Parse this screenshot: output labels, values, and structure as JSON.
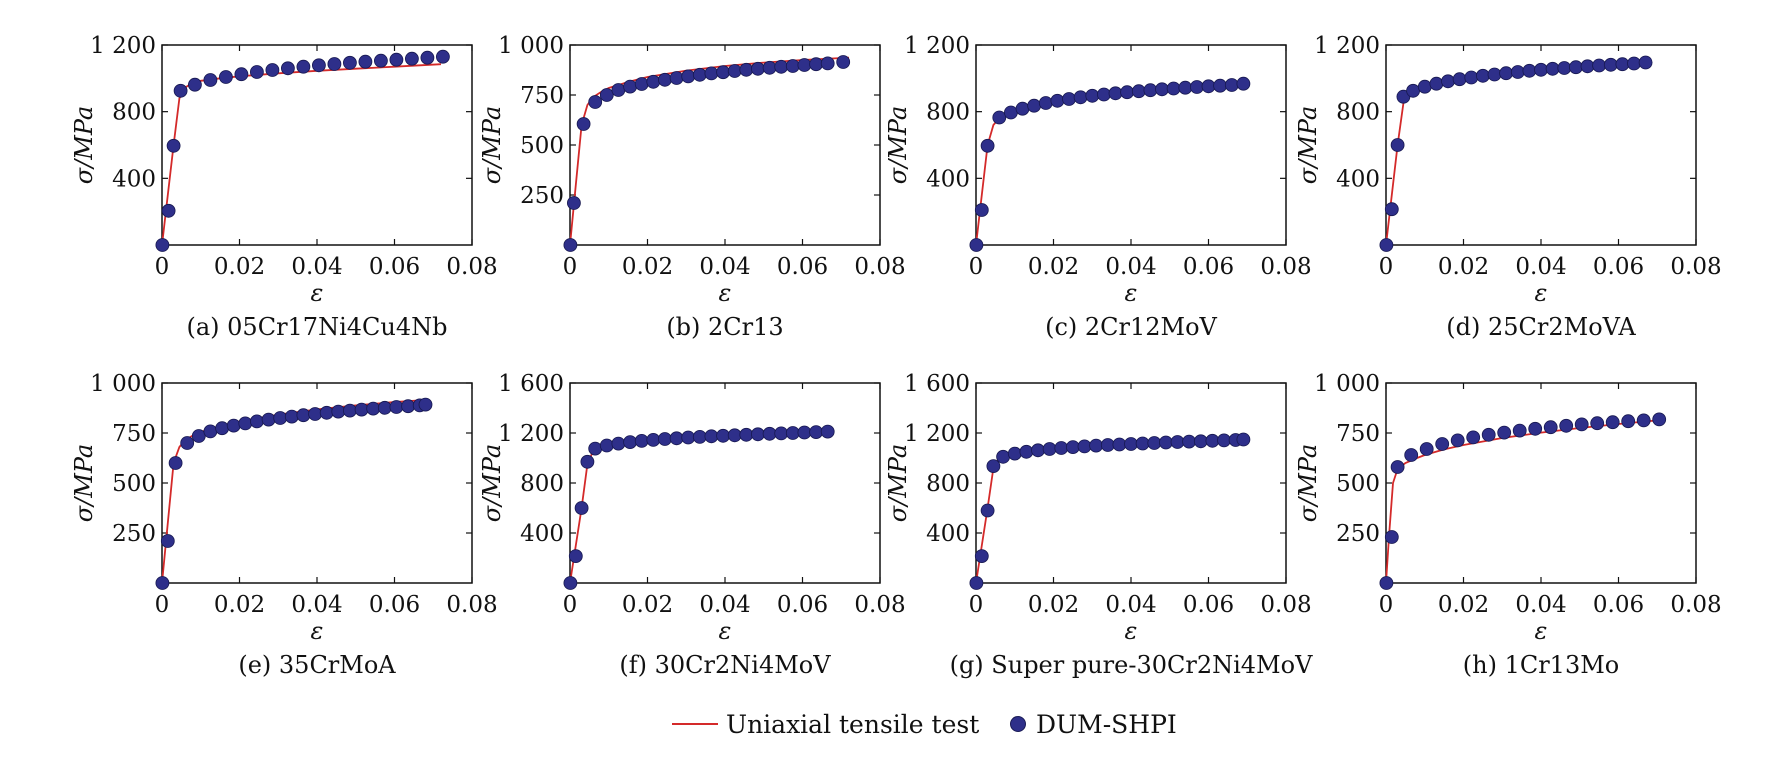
{
  "legend": {
    "line_label": "Uniaxial tensile test",
    "marker_label": "DUM-SHPI",
    "line_color": "#d42a2a",
    "marker_color": "#2e2f8a"
  },
  "chart_data": [
    {
      "type": "line",
      "caption": "(a) 05Cr17Ni4Cu4Nb",
      "xlabel": "ε",
      "ylabel": "σ/MPa",
      "xlim": [
        0,
        0.08
      ],
      "ylim": [
        0,
        1200
      ],
      "xticks": [
        0,
        0.02,
        0.04,
        0.06,
        0.08
      ],
      "xtick_labels": [
        "0",
        "0.02",
        "0.04",
        "0.06",
        "0.08"
      ],
      "yticks": [
        400,
        800,
        1200
      ],
      "ytick_labels": [
        "400",
        "800",
        "1 200"
      ],
      "series": [
        {
          "name": "Uniaxial tensile test",
          "x": [
            0,
            0.0015,
            0.003,
            0.0045,
            0.006,
            0.008,
            0.01,
            0.015,
            0.02,
            0.03,
            0.04,
            0.05,
            0.06,
            0.072
          ],
          "y": [
            0,
            300,
            600,
            880,
            945,
            975,
            985,
            1000,
            1012,
            1030,
            1045,
            1058,
            1070,
            1085
          ]
        },
        {
          "name": "DUM-SHPI",
          "x": [
            0.0001,
            0.0017,
            0.003,
            0.0048,
            0.0085,
            0.0125,
            0.0165,
            0.0205,
            0.0245,
            0.0285,
            0.0325,
            0.0365,
            0.0405,
            0.0445,
            0.0485,
            0.0525,
            0.0565,
            0.0605,
            0.0645,
            0.0685,
            0.0725
          ],
          "y": [
            0,
            205,
            595,
            925,
            962,
            990,
            1008,
            1025,
            1038,
            1050,
            1060,
            1070,
            1078,
            1086,
            1093,
            1100,
            1106,
            1112,
            1118,
            1124,
            1130
          ]
        }
      ]
    },
    {
      "type": "line",
      "caption": "(b) 2Cr13",
      "xlabel": "ε",
      "ylabel": "σ/MPa",
      "xlim": [
        0,
        0.08
      ],
      "ylim": [
        0,
        1000
      ],
      "xticks": [
        0,
        0.02,
        0.04,
        0.06,
        0.08
      ],
      "xtick_labels": [
        "0",
        "0.02",
        "0.04",
        "0.06",
        "0.08"
      ],
      "yticks": [
        250,
        500,
        750,
        1000
      ],
      "ytick_labels": [
        "250",
        "500",
        "750",
        "1 000"
      ],
      "series": [
        {
          "name": "Uniaxial tensile test",
          "x": [
            0,
            0.0015,
            0.003,
            0.0045,
            0.006,
            0.008,
            0.01,
            0.015,
            0.02,
            0.03,
            0.04,
            0.05,
            0.06,
            0.072
          ],
          "y": [
            0,
            300,
            600,
            700,
            740,
            765,
            785,
            815,
            840,
            872,
            895,
            912,
            925,
            937
          ]
        },
        {
          "name": "DUM-SHPI",
          "x": [
            0.0001,
            0.001,
            0.0035,
            0.0065,
            0.0095,
            0.0125,
            0.0155,
            0.0185,
            0.0215,
            0.0245,
            0.0275,
            0.0305,
            0.0335,
            0.0365,
            0.0395,
            0.0425,
            0.0455,
            0.0485,
            0.0515,
            0.0545,
            0.0575,
            0.0605,
            0.0635,
            0.0665,
            0.0705
          ],
          "y": [
            0,
            210,
            605,
            715,
            750,
            775,
            792,
            805,
            816,
            826,
            835,
            843,
            851,
            858,
            864,
            870,
            876,
            881,
            886,
            891,
            895,
            900,
            904,
            908,
            915
          ]
        }
      ]
    },
    {
      "type": "line",
      "caption": "(c) 2Cr12MoV",
      "xlabel": "ε",
      "ylabel": "σ/MPa",
      "xlim": [
        0,
        0.08
      ],
      "ylim": [
        0,
        1200
      ],
      "xticks": [
        0,
        0.02,
        0.04,
        0.06,
        0.08
      ],
      "xtick_labels": [
        "0",
        "0.02",
        "0.04",
        "0.06",
        "0.08"
      ],
      "yticks": [
        400,
        800,
        1200
      ],
      "ytick_labels": [
        "400",
        "800",
        "1 200"
      ],
      "series": [
        {
          "name": "Uniaxial tensile test",
          "x": [
            0,
            0.0015,
            0.003,
            0.0045,
            0.006,
            0.008,
            0.01,
            0.015,
            0.02,
            0.03,
            0.04,
            0.05,
            0.06,
            0.069
          ],
          "y": [
            0,
            300,
            600,
            720,
            760,
            785,
            805,
            840,
            865,
            900,
            925,
            945,
            960,
            972
          ]
        },
        {
          "name": "DUM-SHPI",
          "x": [
            0.0001,
            0.0015,
            0.003,
            0.006,
            0.009,
            0.012,
            0.015,
            0.018,
            0.021,
            0.024,
            0.027,
            0.03,
            0.033,
            0.036,
            0.039,
            0.042,
            0.045,
            0.048,
            0.051,
            0.054,
            0.057,
            0.06,
            0.063,
            0.066,
            0.069
          ],
          "y": [
            0,
            210,
            595,
            765,
            795,
            818,
            836,
            852,
            865,
            876,
            886,
            895,
            903,
            910,
            917,
            923,
            929,
            934,
            939,
            944,
            948,
            952,
            956,
            960,
            968
          ]
        }
      ]
    },
    {
      "type": "line",
      "caption": "(d) 25Cr2MoVA",
      "xlabel": "ε",
      "ylabel": "σ/MPa",
      "xlim": [
        0,
        0.08
      ],
      "ylim": [
        0,
        1200
      ],
      "xticks": [
        0,
        0.02,
        0.04,
        0.06,
        0.08
      ],
      "xtick_labels": [
        "0",
        "0.02",
        "0.04",
        "0.06",
        "0.08"
      ],
      "yticks": [
        400,
        800,
        1200
      ],
      "ytick_labels": [
        "400",
        "800",
        "1 200"
      ],
      "series": [
        {
          "name": "Uniaxial tensile test",
          "x": [
            0,
            0.0015,
            0.003,
            0.0045,
            0.006,
            0.008,
            0.01,
            0.015,
            0.02,
            0.03,
            0.04,
            0.05,
            0.06,
            0.067
          ],
          "y": [
            0,
            300,
            600,
            850,
            900,
            930,
            950,
            978,
            997,
            1025,
            1045,
            1062,
            1078,
            1088
          ]
        },
        {
          "name": "DUM-SHPI",
          "x": [
            0.0001,
            0.0015,
            0.003,
            0.0045,
            0.007,
            0.01,
            0.013,
            0.016,
            0.019,
            0.022,
            0.025,
            0.028,
            0.031,
            0.034,
            0.037,
            0.04,
            0.043,
            0.046,
            0.049,
            0.052,
            0.055,
            0.058,
            0.061,
            0.064,
            0.067
          ],
          "y": [
            0,
            215,
            600,
            890,
            925,
            950,
            968,
            982,
            995,
            1005,
            1015,
            1023,
            1031,
            1038,
            1045,
            1051,
            1057,
            1062,
            1067,
            1072,
            1077,
            1081,
            1085,
            1089,
            1095
          ]
        }
      ]
    },
    {
      "type": "line",
      "caption": "(e) 35CrMoA",
      "xlabel": "ε",
      "ylabel": "σ/MPa",
      "xlim": [
        0,
        0.08
      ],
      "ylim": [
        0,
        1000
      ],
      "xticks": [
        0,
        0.02,
        0.04,
        0.06,
        0.08
      ],
      "xtick_labels": [
        "0",
        "0.02",
        "0.04",
        "0.06",
        "0.08"
      ],
      "yticks": [
        250,
        500,
        750,
        1000
      ],
      "ytick_labels": [
        "250",
        "500",
        "750",
        "1 000"
      ],
      "series": [
        {
          "name": "Uniaxial tensile test",
          "x": [
            0,
            0.0015,
            0.003,
            0.0045,
            0.006,
            0.008,
            0.01,
            0.015,
            0.02,
            0.03,
            0.04,
            0.05,
            0.06,
            0.068
          ],
          "y": [
            0,
            300,
            600,
            680,
            715,
            738,
            755,
            785,
            808,
            842,
            868,
            888,
            905,
            915
          ]
        },
        {
          "name": "DUM-SHPI",
          "x": [
            0.0001,
            0.0015,
            0.0035,
            0.0065,
            0.0095,
            0.0125,
            0.0155,
            0.0185,
            0.0215,
            0.0245,
            0.0275,
            0.0305,
            0.0335,
            0.0365,
            0.0395,
            0.0425,
            0.0455,
            0.0485,
            0.0515,
            0.0545,
            0.0575,
            0.0605,
            0.0635,
            0.0665,
            0.068
          ],
          "y": [
            0,
            210,
            600,
            700,
            735,
            758,
            774,
            787,
            798,
            808,
            817,
            825,
            832,
            839,
            845,
            851,
            857,
            862,
            867,
            872,
            876,
            880,
            884,
            888,
            892
          ]
        }
      ]
    },
    {
      "type": "line",
      "caption": "(f) 30Cr2Ni4MoV",
      "xlabel": "ε",
      "ylabel": "σ/MPa",
      "xlim": [
        0,
        0.08
      ],
      "ylim": [
        0,
        1600
      ],
      "xticks": [
        0,
        0.02,
        0.04,
        0.06,
        0.08
      ],
      "xtick_labels": [
        "0",
        "0.02",
        "0.04",
        "0.06",
        "0.08"
      ],
      "yticks": [
        400,
        800,
        1200,
        1600
      ],
      "ytick_labels": [
        "400",
        "800",
        "1 200",
        "1 600"
      ],
      "series": [
        {
          "name": "Uniaxial tensile test",
          "x": [
            0,
            0.0015,
            0.003,
            0.0045,
            0.006,
            0.008,
            0.01,
            0.015,
            0.02,
            0.03,
            0.04,
            0.05,
            0.06,
            0.067
          ],
          "y": [
            0,
            300,
            600,
            950,
            1060,
            1090,
            1105,
            1130,
            1145,
            1165,
            1182,
            1195,
            1206,
            1213
          ]
        },
        {
          "name": "DUM-SHPI",
          "x": [
            0.0001,
            0.0015,
            0.003,
            0.0045,
            0.0065,
            0.0095,
            0.0125,
            0.0155,
            0.0185,
            0.0215,
            0.0245,
            0.0275,
            0.0305,
            0.0335,
            0.0365,
            0.0395,
            0.0425,
            0.0455,
            0.0485,
            0.0515,
            0.0545,
            0.0575,
            0.0605,
            0.0635,
            0.0665
          ],
          "y": [
            0,
            215,
            600,
            970,
            1075,
            1100,
            1115,
            1127,
            1137,
            1145,
            1152,
            1158,
            1164,
            1169,
            1174,
            1178,
            1182,
            1186,
            1190,
            1194,
            1197,
            1200,
            1204,
            1207,
            1211
          ]
        }
      ]
    },
    {
      "type": "line",
      "caption": "(g) Super pure-30Cr2Ni4MoV",
      "xlabel": "ε",
      "ylabel": "σ/MPa",
      "xlim": [
        0,
        0.08
      ],
      "ylim": [
        0,
        1600
      ],
      "xticks": [
        0,
        0.02,
        0.04,
        0.06,
        0.08
      ],
      "xtick_labels": [
        "0",
        "0.02",
        "0.04",
        "0.06",
        "0.08"
      ],
      "yticks": [
        400,
        800,
        1200,
        1600
      ],
      "ytick_labels": [
        "400",
        "800",
        "1 200",
        "1 600"
      ],
      "series": [
        {
          "name": "Uniaxial tensile test",
          "x": [
            0,
            0.0015,
            0.003,
            0.0045,
            0.006,
            0.008,
            0.01,
            0.015,
            0.02,
            0.03,
            0.04,
            0.05,
            0.06,
            0.069
          ],
          "y": [
            0,
            300,
            600,
            920,
            1000,
            1030,
            1045,
            1068,
            1082,
            1102,
            1118,
            1130,
            1140,
            1148
          ]
        },
        {
          "name": "DUM-SHPI",
          "x": [
            0.0001,
            0.0015,
            0.003,
            0.0045,
            0.007,
            0.01,
            0.013,
            0.016,
            0.019,
            0.022,
            0.025,
            0.028,
            0.031,
            0.034,
            0.037,
            0.04,
            0.043,
            0.046,
            0.049,
            0.052,
            0.055,
            0.058,
            0.061,
            0.064,
            0.067,
            0.069
          ],
          "y": [
            0,
            215,
            580,
            935,
            1010,
            1035,
            1050,
            1062,
            1072,
            1080,
            1087,
            1093,
            1099,
            1104,
            1108,
            1112,
            1116,
            1120,
            1124,
            1128,
            1131,
            1134,
            1138,
            1141,
            1144,
            1148
          ]
        }
      ]
    },
    {
      "type": "line",
      "caption": "(h) 1Cr13Mo",
      "xlabel": "ε",
      "ylabel": "σ/MPa",
      "xlim": [
        0,
        0.08
      ],
      "ylim": [
        0,
        1000
      ],
      "xticks": [
        0,
        0.02,
        0.04,
        0.06,
        0.08
      ],
      "xtick_labels": [
        "0",
        "0.02",
        "0.04",
        "0.06",
        "0.08"
      ],
      "yticks": [
        250,
        500,
        750,
        1000
      ],
      "ytick_labels": [
        "250",
        "500",
        "750",
        "1 000"
      ],
      "series": [
        {
          "name": "Uniaxial tensile test",
          "x": [
            0,
            0.0008,
            0.0018,
            0.003,
            0.005,
            0.008,
            0.01,
            0.015,
            0.02,
            0.03,
            0.04,
            0.05,
            0.06,
            0.071
          ],
          "y": [
            0,
            240,
            500,
            570,
            600,
            625,
            640,
            668,
            690,
            725,
            752,
            775,
            795,
            815
          ]
        },
        {
          "name": "DUM-SHPI",
          "x": [
            0.0001,
            0.0015,
            0.003,
            0.0065,
            0.0105,
            0.0145,
            0.0185,
            0.0225,
            0.0265,
            0.0305,
            0.0345,
            0.0385,
            0.0425,
            0.0465,
            0.0505,
            0.0545,
            0.0585,
            0.0625,
            0.0665,
            0.0705
          ],
          "y": [
            0,
            230,
            580,
            640,
            670,
            695,
            713,
            728,
            741,
            752,
            762,
            771,
            779,
            786,
            793,
            799,
            804,
            809,
            813,
            818
          ]
        }
      ]
    }
  ]
}
